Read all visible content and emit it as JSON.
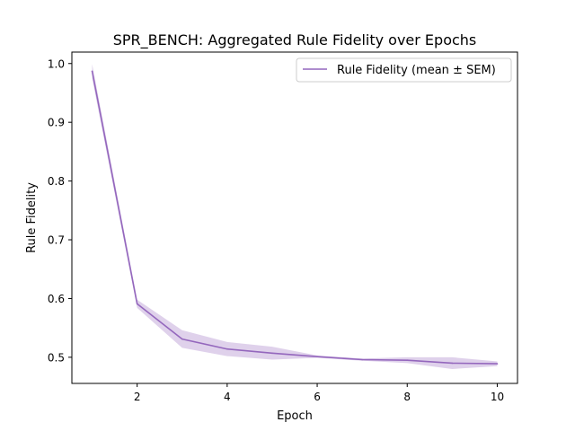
{
  "chart_data": {
    "type": "line",
    "title": "SPR_BENCH: Aggregated Rule Fidelity over Epochs",
    "xlabel": "Epoch",
    "ylabel": "Rule Fidelity",
    "xlim": [
      0.55,
      10.45
    ],
    "ylim": [
      0.4555,
      1.0195
    ],
    "xticks": [
      2,
      4,
      6,
      8,
      10
    ],
    "xtick_labels": [
      "2",
      "4",
      "6",
      "8",
      "10"
    ],
    "yticks": [
      0.5,
      0.6,
      0.7,
      0.8,
      0.9,
      1.0
    ],
    "ytick_labels": [
      "0.5",
      "0.6",
      "0.7",
      "0.8",
      "0.9",
      "1.0"
    ],
    "grid": false,
    "legend_placement": "top-right",
    "x": [
      1,
      2,
      3,
      4,
      5,
      6,
      7,
      8,
      9,
      10
    ],
    "series": [
      {
        "name": "Rule Fidelity (mean ± SEM)",
        "color": "#9467bd",
        "values": [
          0.987,
          0.591,
          0.531,
          0.514,
          0.507,
          0.501,
          0.496,
          0.495,
          0.49,
          0.489
        ],
        "sem_lower": [
          0.975,
          0.584,
          0.516,
          0.502,
          0.496,
          0.499,
          0.494,
          0.49,
          0.48,
          0.485
        ],
        "sem_upper": [
          0.999,
          0.598,
          0.546,
          0.526,
          0.518,
          0.503,
          0.498,
          0.5,
          0.5,
          0.493
        ]
      }
    ]
  }
}
